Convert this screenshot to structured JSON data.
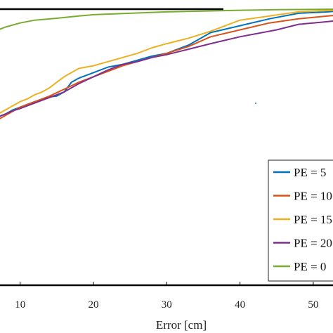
{
  "chart_data": {
    "type": "line",
    "title": "",
    "xlabel": "Error [cm]",
    "ylabel": "",
    "xlim": [
      7,
      54
    ],
    "ylim": [
      0,
      1
    ],
    "xticks": [
      "10",
      "20",
      "30",
      "40",
      "50"
    ],
    "grid": false,
    "legend": "bottom-right",
    "series": [
      {
        "name": "PE = 5",
        "color": "#0072BD",
        "x": [
          7,
          8,
          9,
          10,
          11,
          12,
          13,
          14,
          15,
          16,
          17,
          18,
          19,
          20,
          22,
          24,
          26,
          28,
          30,
          33,
          36,
          40,
          44,
          48,
          52,
          54
        ],
        "y": [
          0.61,
          0.62,
          0.635,
          0.645,
          0.655,
          0.665,
          0.672,
          0.682,
          0.685,
          0.7,
          0.735,
          0.75,
          0.76,
          0.77,
          0.79,
          0.8,
          0.815,
          0.83,
          0.84,
          0.87,
          0.915,
          0.94,
          0.965,
          0.985,
          0.99,
          0.995
        ]
      },
      {
        "name": "PE = 10",
        "color": "#D95319",
        "x": [
          7,
          8,
          9,
          10,
          12,
          14,
          16,
          18,
          20,
          22,
          24,
          26,
          28,
          30,
          33,
          36,
          40,
          44,
          48,
          52,
          54
        ],
        "y": [
          0.6,
          0.615,
          0.63,
          0.645,
          0.665,
          0.685,
          0.71,
          0.735,
          0.755,
          0.775,
          0.795,
          0.81,
          0.825,
          0.84,
          0.865,
          0.9,
          0.925,
          0.95,
          0.965,
          0.975,
          0.98
        ]
      },
      {
        "name": "PE = 15",
        "color": "#EDB120",
        "x": [
          7,
          8,
          9,
          10,
          11,
          12,
          13,
          14,
          15,
          16,
          17,
          18,
          19,
          20,
          22,
          24,
          26,
          28,
          30,
          33,
          36,
          40,
          44,
          48,
          52,
          54
        ],
        "y": [
          0.62,
          0.635,
          0.65,
          0.665,
          0.675,
          0.69,
          0.7,
          0.715,
          0.735,
          0.755,
          0.77,
          0.785,
          0.79,
          0.795,
          0.81,
          0.825,
          0.84,
          0.86,
          0.875,
          0.895,
          0.92,
          0.96,
          0.975,
          0.99,
          0.995,
          0.997
        ]
      },
      {
        "name": "PE = 20",
        "color": "#7E2F8E",
        "x": [
          7,
          8,
          9,
          10,
          12,
          14,
          16,
          18,
          20,
          22,
          24,
          26,
          28,
          30,
          33,
          36,
          40,
          42,
          45,
          48,
          52,
          54
        ],
        "y": [
          0.61,
          0.62,
          0.632,
          0.64,
          0.66,
          0.68,
          0.7,
          0.73,
          0.755,
          0.78,
          0.8,
          0.81,
          0.825,
          0.835,
          0.855,
          0.875,
          0.9,
          0.91,
          0.925,
          0.945,
          0.955,
          0.96
        ]
      },
      {
        "name": "PE = 0",
        "color": "#77AC30",
        "x": [
          7,
          8,
          10,
          12,
          15,
          18,
          20,
          25,
          30,
          35,
          40,
          45,
          50,
          54
        ],
        "y": [
          0.925,
          0.935,
          0.95,
          0.96,
          0.967,
          0.975,
          0.98,
          0.985,
          0.99,
          0.993,
          0.996,
          0.998,
          0.999,
          1.0
        ]
      }
    ]
  }
}
